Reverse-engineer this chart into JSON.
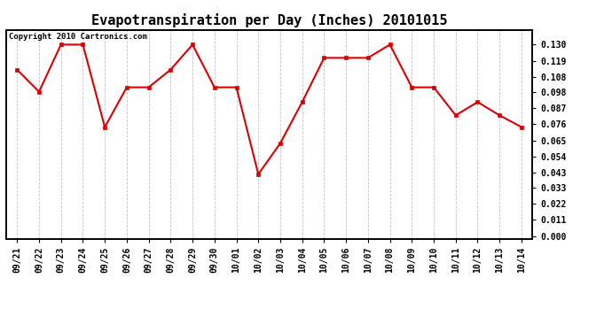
{
  "title": "Evapotranspiration per Day (Inches) 20101015",
  "copyright": "Copyright 2010 Cartronics.com",
  "dates": [
    "09/21",
    "09/22",
    "09/23",
    "09/24",
    "09/25",
    "09/26",
    "09/27",
    "09/28",
    "09/29",
    "09/30",
    "10/01",
    "10/02",
    "10/03",
    "10/04",
    "10/05",
    "10/06",
    "10/07",
    "10/08",
    "10/09",
    "10/10",
    "10/11",
    "10/12",
    "10/13",
    "10/14"
  ],
  "values": [
    0.113,
    0.098,
    0.13,
    0.13,
    0.074,
    0.101,
    0.101,
    0.113,
    0.13,
    0.101,
    0.101,
    0.042,
    0.063,
    0.091,
    0.121,
    0.121,
    0.121,
    0.13,
    0.101,
    0.101,
    0.082,
    0.091,
    0.082,
    0.074
  ],
  "line_color": "#dd0000",
  "marker": "s",
  "marker_size": 2.5,
  "background_color": "#ffffff",
  "grid_color": "#bbbbbb",
  "yticks": [
    0.0,
    0.011,
    0.022,
    0.033,
    0.043,
    0.054,
    0.065,
    0.076,
    0.087,
    0.098,
    0.108,
    0.119,
    0.13
  ],
  "ylim": [
    -0.002,
    0.14
  ],
  "title_fontsize": 11,
  "copyright_fontsize": 6.5,
  "tick_fontsize": 7,
  "figsize": [
    6.9,
    3.75
  ],
  "dpi": 100
}
